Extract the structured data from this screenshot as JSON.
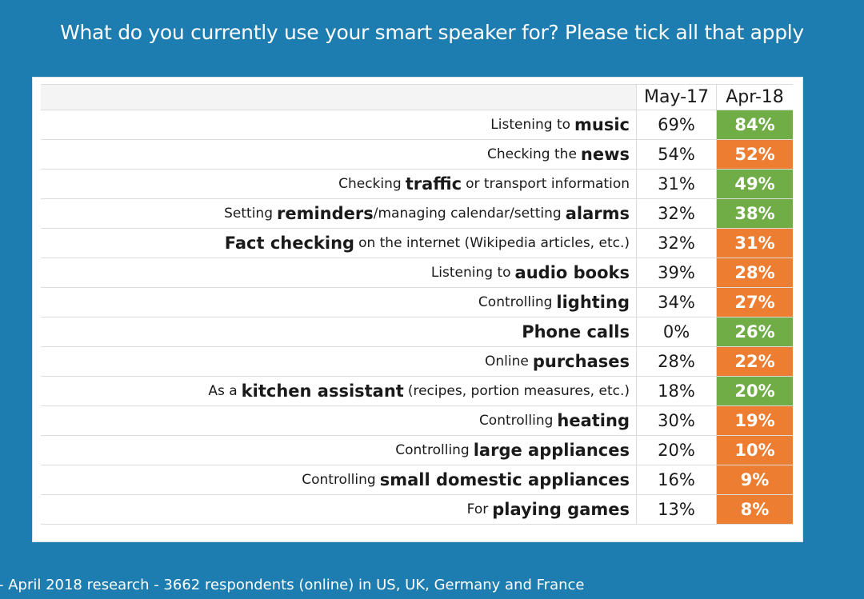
{
  "title": "What do you currently use your smart speaker for? Please tick all that apply",
  "footer": "- April 2018 research - 3662 respondents (online) in US, UK, Germany and France",
  "colors": {
    "increase": "#70ad47",
    "decrease": "#ed7d31",
    "background": "#1e7db0"
  },
  "chart_data": {
    "type": "table",
    "columns": [
      "May-17",
      "Apr-18"
    ],
    "rows": [
      {
        "pre": "Listening to",
        "key": "music",
        "post": "",
        "may17": "69%",
        "apr18": "84%",
        "trend": "up"
      },
      {
        "pre": "Checking the",
        "key": "news",
        "post": "",
        "may17": "54%",
        "apr18": "52%",
        "trend": "down"
      },
      {
        "pre": "Checking",
        "key": "traffic",
        "post": "or transport information",
        "may17": "31%",
        "apr18": "49%",
        "trend": "up"
      },
      {
        "pre": "Setting",
        "key": "reminders",
        "post": "/managing calendar/setting",
        "key2": "alarms",
        "may17": "32%",
        "apr18": "38%",
        "trend": "up"
      },
      {
        "pre": "",
        "key": "Fact checking",
        "post": "on the internet (Wikipedia articles, etc.)",
        "may17": "32%",
        "apr18": "31%",
        "trend": "down"
      },
      {
        "pre": "Listening to",
        "key": "audio books",
        "post": "",
        "may17": "39%",
        "apr18": "28%",
        "trend": "down"
      },
      {
        "pre": "Controlling",
        "key": "lighting",
        "post": "",
        "may17": "34%",
        "apr18": "27%",
        "trend": "down"
      },
      {
        "pre": "",
        "key": "Phone calls",
        "post": "",
        "may17": "0%",
        "apr18": "26%",
        "trend": "up"
      },
      {
        "pre": "Online",
        "key": "purchases",
        "post": "",
        "may17": "28%",
        "apr18": "22%",
        "trend": "down"
      },
      {
        "pre": "As a",
        "key": "kitchen assistant",
        "post": "(recipes, portion measures, etc.)",
        "may17": "18%",
        "apr18": "20%",
        "trend": "up"
      },
      {
        "pre": "Controlling",
        "key": "heating",
        "post": "",
        "may17": "30%",
        "apr18": "19%",
        "trend": "down"
      },
      {
        "pre": "Controlling",
        "key": "large appliances",
        "post": "",
        "may17": "20%",
        "apr18": "10%",
        "trend": "down"
      },
      {
        "pre": "Controlling",
        "key": "small domestic appliances",
        "post": "",
        "may17": "16%",
        "apr18": "9%",
        "trend": "down"
      },
      {
        "pre": "For",
        "key": "playing games",
        "post": "",
        "may17": "13%",
        "apr18": "8%",
        "trend": "down"
      }
    ]
  }
}
